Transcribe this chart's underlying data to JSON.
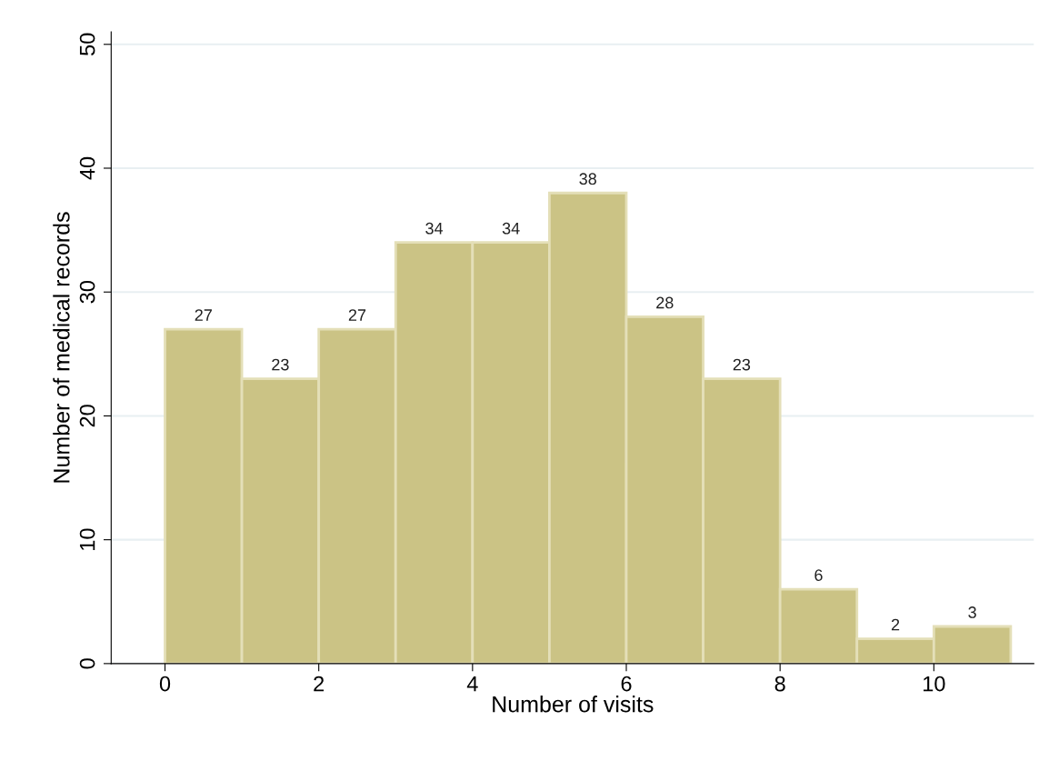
{
  "chart_data": {
    "type": "histogram",
    "xlabel": "Number of visits",
    "ylabel": "Number of medical records",
    "bins": [
      0,
      1,
      2,
      3,
      4,
      5,
      6,
      7,
      8,
      9,
      10,
      11
    ],
    "values": [
      27,
      23,
      27,
      34,
      34,
      38,
      28,
      23,
      6,
      2,
      3
    ],
    "color": "#cbc385",
    "data_labels": true,
    "grid": "y",
    "legend": false,
    "xlim": [
      -0.7,
      11.3
    ],
    "ylim": [
      0,
      51
    ],
    "xticks": [
      0,
      2,
      4,
      6,
      8,
      10
    ],
    "yticks": [
      0,
      10,
      20,
      30,
      40,
      50
    ]
  }
}
